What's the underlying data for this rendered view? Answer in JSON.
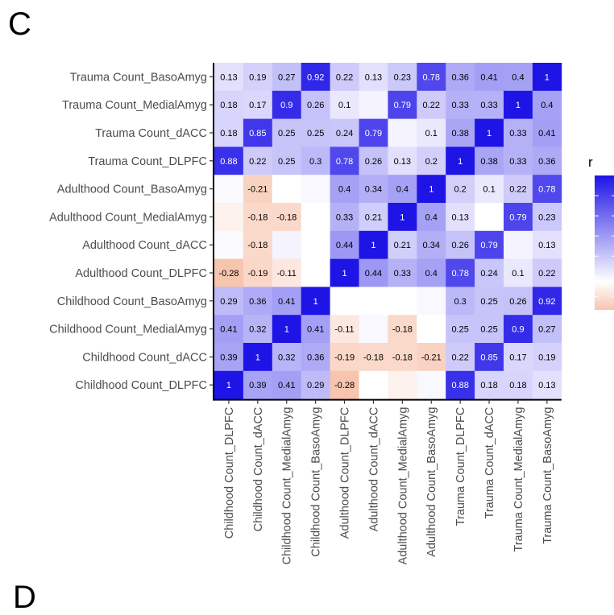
{
  "panel_label": "C",
  "next_panel_label": "D",
  "chart_data": {
    "type": "heatmap",
    "title": "",
    "xlabel": "",
    "ylabel": "",
    "legend": {
      "title": "r",
      "placement": "right",
      "low_color": "#f7c4ad",
      "mid_color": "#ffffff",
      "high_color": "#1e14e6"
    },
    "x_categories": [
      "Childhood Count_DLPFC",
      "Childhood Count_dACC",
      "Childhood Count_MedialAmyg",
      "Childhood Count_BasoAmyg",
      "Adulthood Count_DLPFC",
      "Adulthood Count_dACC",
      "Adulthood Count_MedialAmyg",
      "Adulthood Count_BasoAmyg",
      "Trauma Count_DLPFC",
      "Trauma Count_dACC",
      "Trauma Count_MedialAmyg",
      "Trauma Count_BasoAmyg"
    ],
    "y_categories_top_to_bottom": [
      "Trauma Count_BasoAmyg",
      "Trauma Count_MedialAmyg",
      "Trauma Count_dACC",
      "Trauma Count_DLPFC",
      "Adulthood Count_BasoAmyg",
      "Adulthood Count_MedialAmyg",
      "Adulthood Count_dACC",
      "Adulthood Count_DLPFC",
      "Childhood Count_BasoAmyg",
      "Childhood Count_MedialAmyg",
      "Childhood Count_dACC",
      "Childhood Count_DLPFC"
    ],
    "values": [
      [
        0.13,
        0.19,
        0.27,
        0.92,
        0.22,
        0.13,
        0.23,
        0.78,
        0.36,
        0.41,
        0.4,
        1
      ],
      [
        0.18,
        0.17,
        0.9,
        0.26,
        0.1,
        0.05,
        0.79,
        0.22,
        0.33,
        0.33,
        1,
        0.4
      ],
      [
        0.18,
        0.85,
        0.25,
        0.25,
        0.24,
        0.79,
        0.05,
        0.1,
        0.38,
        1,
        0.33,
        0.41
      ],
      [
        0.88,
        0.22,
        0.25,
        0.3,
        0.78,
        0.26,
        0.13,
        0.2,
        1,
        0.38,
        0.33,
        0.36
      ],
      [
        0.02,
        -0.21,
        0.0,
        0.03,
        0.4,
        0.34,
        0.4,
        1,
        0.2,
        0.1,
        0.22,
        0.78
      ],
      [
        -0.06,
        -0.18,
        -0.18,
        0.0,
        0.33,
        0.21,
        1,
        0.4,
        0.13,
        0.0,
        0.79,
        0.23
      ],
      [
        0.02,
        -0.18,
        0.05,
        0.0,
        0.44,
        1,
        0.21,
        0.34,
        0.26,
        0.79,
        0.05,
        0.13
      ],
      [
        -0.28,
        -0.19,
        -0.11,
        0.0,
        1,
        0.44,
        0.33,
        0.4,
        0.78,
        0.24,
        0.1,
        0.22
      ],
      [
        0.29,
        0.36,
        0.41,
        1,
        0.0,
        0.0,
        0.0,
        0.03,
        0.3,
        0.25,
        0.26,
        0.92
      ],
      [
        0.41,
        0.32,
        1,
        0.41,
        -0.11,
        0.03,
        -0.18,
        0.0,
        0.25,
        0.25,
        0.9,
        0.27
      ],
      [
        0.39,
        1,
        0.32,
        0.36,
        -0.19,
        -0.18,
        -0.18,
        -0.21,
        0.22,
        0.85,
        0.17,
        0.19
      ],
      [
        1,
        0.39,
        0.41,
        0.29,
        -0.28,
        0.0,
        -0.06,
        0.03,
        0.88,
        0.18,
        0.18,
        0.13
      ]
    ],
    "labels": [
      [
        "0.13",
        "0.19",
        "0.27",
        "0.92",
        "0.22",
        "0.13",
        "0.23",
        "0.78",
        "0.36",
        "0.41",
        "0.4",
        "1"
      ],
      [
        "0.18",
        "0.17",
        "0.9",
        "0.26",
        "0.1",
        "",
        "0.79",
        "0.22",
        "0.33",
        "0.33",
        "1",
        "0.4"
      ],
      [
        "0.18",
        "0.85",
        "0.25",
        "0.25",
        "0.24",
        "0.79",
        "",
        "0.1",
        "0.38",
        "1",
        "0.33",
        "0.41"
      ],
      [
        "0.88",
        "0.22",
        "0.25",
        "0.3",
        "0.78",
        "0.26",
        "0.13",
        "0.2",
        "1",
        "0.38",
        "0.33",
        "0.36"
      ],
      [
        "",
        "-0.21",
        "",
        "",
        "0.4",
        "0.34",
        "0.4",
        "1",
        "0.2",
        "0.1",
        "0.22",
        "0.78"
      ],
      [
        "",
        "-0.18",
        "-0.18",
        "",
        "0.33",
        "0.21",
        "1",
        "0.4",
        "0.13",
        "",
        "0.79",
        "0.23"
      ],
      [
        "",
        "-0.18",
        "",
        "",
        "0.44",
        "1",
        "0.21",
        "0.34",
        "0.26",
        "0.79",
        "",
        "0.13"
      ],
      [
        "-0.28",
        "-0.19",
        "-0.11",
        "",
        "1",
        "0.44",
        "0.33",
        "0.4",
        "0.78",
        "0.24",
        "0.1",
        "0.22"
      ],
      [
        "0.29",
        "0.36",
        "0.41",
        "1",
        "",
        "",
        "",
        "",
        "0.3",
        "0.25",
        "0.26",
        "0.92"
      ],
      [
        "0.41",
        "0.32",
        "1",
        "0.41",
        "-0.11",
        "",
        "-0.18",
        "",
        "0.25",
        "0.25",
        "0.9",
        "0.27"
      ],
      [
        "0.39",
        "1",
        "0.32",
        "0.36",
        "-0.19",
        "-0.18",
        "-0.18",
        "-0.21",
        "0.22",
        "0.85",
        "0.17",
        "0.19"
      ],
      [
        "1",
        "0.39",
        "0.41",
        "0.29",
        "-0.28",
        "",
        "",
        "",
        "0.88",
        "0.18",
        "0.18",
        "0.13"
      ]
    ]
  }
}
